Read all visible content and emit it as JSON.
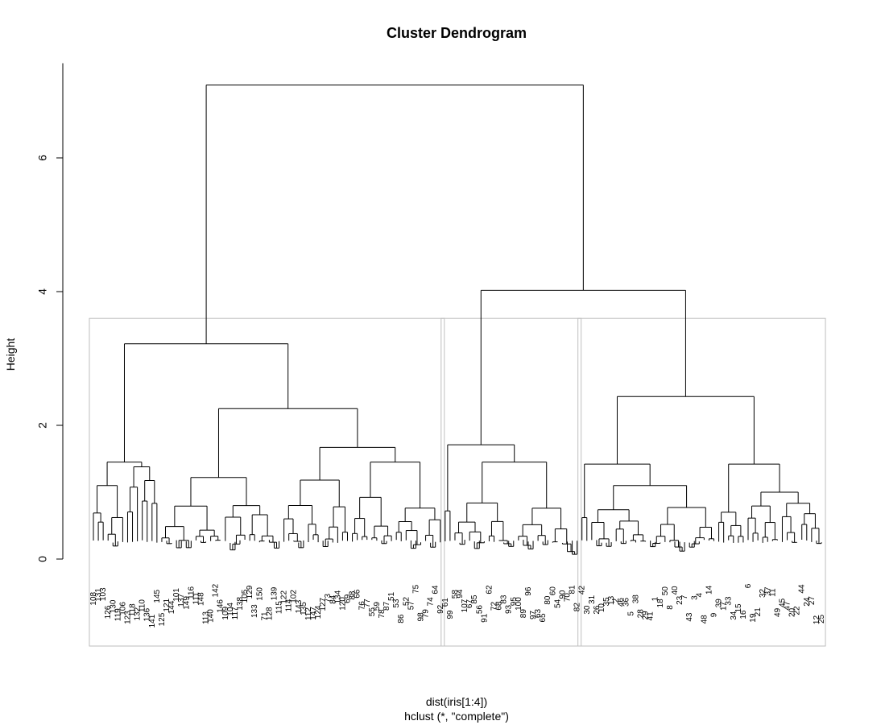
{
  "chart_data": {
    "type": "dendrogram",
    "title": "Cluster Dendrogram",
    "ylabel": "Height",
    "xlabel": "dist(iris[1:4])",
    "sublabel": "hclust (*, \"complete\")",
    "ylim": [
      0,
      7.09
    ],
    "y_ticks": [
      0,
      2,
      4,
      6
    ],
    "root_height": 7.09,
    "rect_cut_height": 3.6,
    "rect_color": "#bebebe",
    "merges": [
      {
        "height": 7.09,
        "children": [
          "group-1",
          "upper-right"
        ]
      },
      {
        "height": 4.02,
        "children": [
          "group-2",
          "group-3"
        ]
      },
      {
        "height": 3.22,
        "children": [
          "group-1-left",
          "group-1-right"
        ]
      },
      {
        "height": 2.25,
        "children": [
          "group-1-right-a",
          "group-1-right-b"
        ]
      },
      {
        "height": 1.67,
        "children": [
          "group-1-right-b-1",
          "group-1-right-b-2"
        ]
      },
      {
        "height": 1.45,
        "children": [
          "group-1-left-a",
          "group-1-left-b"
        ]
      },
      {
        "height": 1.71,
        "children": [
          "group-2-left",
          "group-2-right"
        ]
      },
      {
        "height": 2.43,
        "children": [
          "group-3-left",
          "group-3-right"
        ]
      },
      {
        "height": 1.42,
        "children": [
          "group-3-left-a",
          "group-3-left-b"
        ]
      },
      {
        "height": 1.42,
        "children": [
          "group-3-right-a",
          "group-3-right-b"
        ]
      }
    ],
    "clusters": [
      {
        "name": "1",
        "leaves": [
          "108",
          "131",
          "103",
          "126",
          "130",
          "119",
          "106",
          "123",
          "118",
          "132",
          "110",
          "136",
          "141",
          "145",
          "125",
          "121",
          "144",
          "101",
          "137",
          "149",
          "116",
          "111",
          "148",
          "113",
          "140",
          "142",
          "146",
          "109",
          "104",
          "117",
          "138",
          "105",
          "129",
          "133",
          "150",
          "71",
          "128",
          "139",
          "115",
          "122",
          "114",
          "102",
          "143",
          "135",
          "112",
          "147",
          "124",
          "127",
          "73",
          "84",
          "134",
          "120",
          "69",
          "88",
          "66",
          "76",
          "77",
          "55",
          "59",
          "78",
          "87",
          "51",
          "53",
          "86",
          "52",
          "57",
          "75",
          "98",
          "79",
          "74",
          "64",
          "92"
        ]
      },
      {
        "name": "2",
        "leaves": [
          "61",
          "99",
          "58",
          "94",
          "107",
          "67",
          "85",
          "56",
          "91",
          "62",
          "72",
          "68",
          "83",
          "93",
          "95",
          "100",
          "89",
          "96",
          "97",
          "63",
          "65",
          "80",
          "60",
          "54",
          "90",
          "70",
          "81",
          "82"
        ]
      },
      {
        "name": "3",
        "leaves": [
          "42",
          "30",
          "31",
          "26",
          "10",
          "35",
          "13",
          "2",
          "46",
          "36",
          "5",
          "38",
          "28",
          "29",
          "41",
          "1",
          "18",
          "50",
          "8",
          "40",
          "23",
          "7",
          "43",
          "3",
          "4",
          "48",
          "14",
          "9",
          "39",
          "17",
          "33",
          "34",
          "15",
          "16",
          "6",
          "19",
          "21",
          "32",
          "37",
          "11",
          "49",
          "45",
          "47",
          "20",
          "22",
          "44",
          "24",
          "27",
          "12",
          "25"
        ]
      }
    ]
  }
}
